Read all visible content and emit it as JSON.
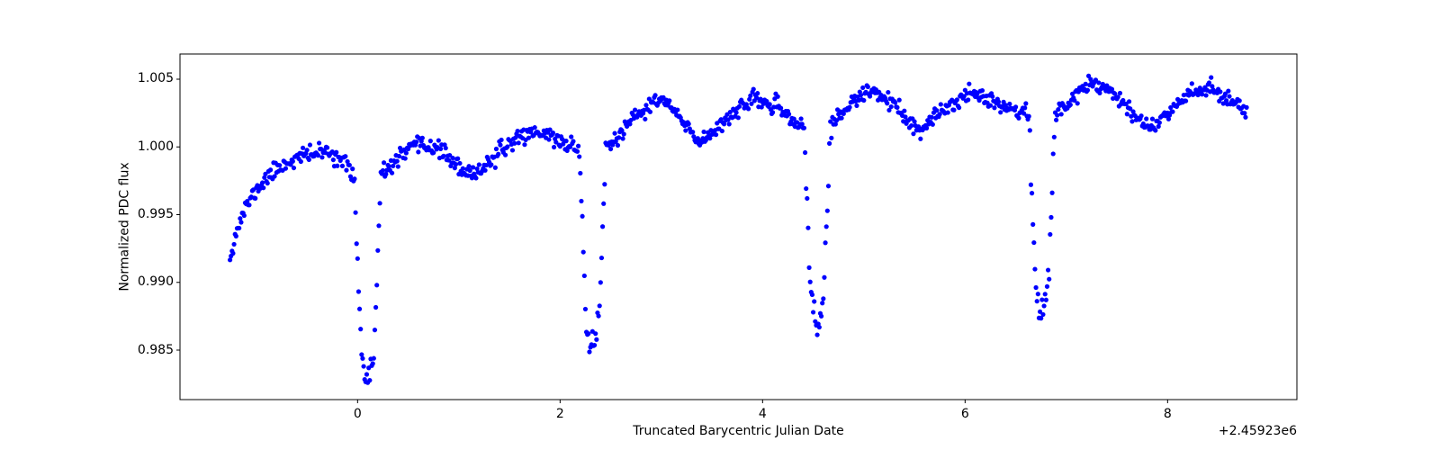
{
  "figure": {
    "background": "#ffffff",
    "frame_color": "#000000",
    "text_color": "#000000"
  },
  "chart_data": {
    "type": "scatter",
    "title": "",
    "xlabel": "Truncated Barycentric Julian Date",
    "ylabel": "Normalized PDC flux",
    "x_offset_label": "+2.45923e6",
    "legend": null,
    "grid": false,
    "xlim": [
      -1.754,
      9.277
    ],
    "ylim": [
      0.98135,
      1.00686
    ],
    "xticks": [
      0,
      2,
      4,
      6,
      8
    ],
    "xtick_labels": [
      "0",
      "2",
      "4",
      "6",
      "8"
    ],
    "yticks": [
      0.985,
      0.99,
      0.995,
      1.0,
      1.005
    ],
    "ytick_labels": [
      "0.985",
      "0.990",
      "0.995",
      "1.000",
      "1.005"
    ],
    "marker": {
      "color": "#0000ff",
      "radius": 2.6
    },
    "series": {
      "name": "PDC flux",
      "t_start": -1.26,
      "t_end": 8.78,
      "cadence_days": 0.01,
      "noise_sigma": 0.0003,
      "transit_noise_sigma": 0.00055,
      "random_seed": 11,
      "envelope": [
        [
          -1.26,
          0.992
        ],
        [
          -1.22,
          0.9931
        ],
        [
          -1.18,
          0.9941
        ],
        [
          -1.13,
          0.9951
        ],
        [
          -1.07,
          0.996
        ],
        [
          -1.0,
          0.9968
        ],
        [
          -0.92,
          0.9975
        ],
        [
          -0.84,
          0.9981
        ],
        [
          -0.75,
          0.9986
        ],
        [
          -0.65,
          0.999
        ],
        [
          -0.55,
          0.9993
        ],
        [
          -0.45,
          0.9995
        ],
        [
          -0.35,
          0.9996
        ],
        [
          -0.25,
          0.9995
        ],
        [
          -0.15,
          0.999
        ],
        [
          -0.05,
          0.9979
        ],
        [
          0.02,
          0.9973
        ],
        [
          0.1,
          0.9971
        ],
        [
          0.18,
          0.9974
        ],
        [
          0.28,
          0.9982
        ],
        [
          0.38,
          0.999
        ],
        [
          0.48,
          0.9996
        ],
        [
          0.58,
          1.0
        ],
        [
          0.68,
          1.0001
        ],
        [
          0.78,
          0.9999
        ],
        [
          0.88,
          0.9994
        ],
        [
          0.98,
          0.9986
        ],
        [
          1.08,
          0.9979
        ],
        [
          1.18,
          0.9982
        ],
        [
          1.28,
          0.9988
        ],
        [
          1.38,
          0.9994
        ],
        [
          1.48,
          1.0001
        ],
        [
          1.58,
          1.0007
        ],
        [
          1.68,
          1.001
        ],
        [
          1.78,
          1.0011
        ],
        [
          1.88,
          1.0009
        ],
        [
          1.98,
          1.0005
        ],
        [
          2.1,
          1.0001
        ],
        [
          2.2,
          0.9998
        ],
        [
          2.32,
          0.9996
        ],
        [
          2.44,
          0.9998
        ],
        [
          2.54,
          1.0005
        ],
        [
          2.64,
          1.0013
        ],
        [
          2.74,
          1.0021
        ],
        [
          2.84,
          1.0028
        ],
        [
          2.94,
          1.0033
        ],
        [
          3.02,
          1.0034
        ],
        [
          3.12,
          1.0027
        ],
        [
          3.22,
          1.0017
        ],
        [
          3.32,
          1.0008
        ],
        [
          3.4,
          1.0005
        ],
        [
          3.5,
          1.0011
        ],
        [
          3.6,
          1.0018
        ],
        [
          3.7,
          1.0025
        ],
        [
          3.82,
          1.0031
        ],
        [
          3.95,
          1.0034
        ],
        [
          4.08,
          1.0031
        ],
        [
          4.22,
          1.0024
        ],
        [
          4.38,
          1.0016
        ],
        [
          4.54,
          1.0012
        ],
        [
          4.68,
          1.0017
        ],
        [
          4.82,
          1.0028
        ],
        [
          4.96,
          1.0036
        ],
        [
          5.08,
          1.0041
        ],
        [
          5.2,
          1.0037
        ],
        [
          5.32,
          1.0028
        ],
        [
          5.44,
          1.0019
        ],
        [
          5.56,
          1.0012
        ],
        [
          5.68,
          1.002
        ],
        [
          5.82,
          1.0029
        ],
        [
          5.96,
          1.0036
        ],
        [
          6.1,
          1.004
        ],
        [
          6.22,
          1.0037
        ],
        [
          6.36,
          1.0031
        ],
        [
          6.5,
          1.0027
        ],
        [
          6.62,
          1.0024
        ],
        [
          6.76,
          1.0022
        ],
        [
          6.9,
          1.0025
        ],
        [
          7.02,
          1.0033
        ],
        [
          7.14,
          1.0042
        ],
        [
          7.24,
          1.0047
        ],
        [
          7.34,
          1.0046
        ],
        [
          7.46,
          1.004
        ],
        [
          7.58,
          1.0032
        ],
        [
          7.7,
          1.0022
        ],
        [
          7.82,
          1.0014
        ],
        [
          7.94,
          1.0021
        ],
        [
          8.06,
          1.003
        ],
        [
          8.18,
          1.0038
        ],
        [
          8.3,
          1.0043
        ],
        [
          8.42,
          1.0042
        ],
        [
          8.54,
          1.0038
        ],
        [
          8.66,
          1.0033
        ],
        [
          8.78,
          1.0028
        ]
      ],
      "transits": {
        "centers": [
          0.1,
          2.32,
          4.54,
          6.76
        ],
        "depth": 0.0143,
        "flat_half_width": 0.065,
        "total_half_width": 0.13,
        "bottom_curvature": 0.15
      }
    }
  }
}
